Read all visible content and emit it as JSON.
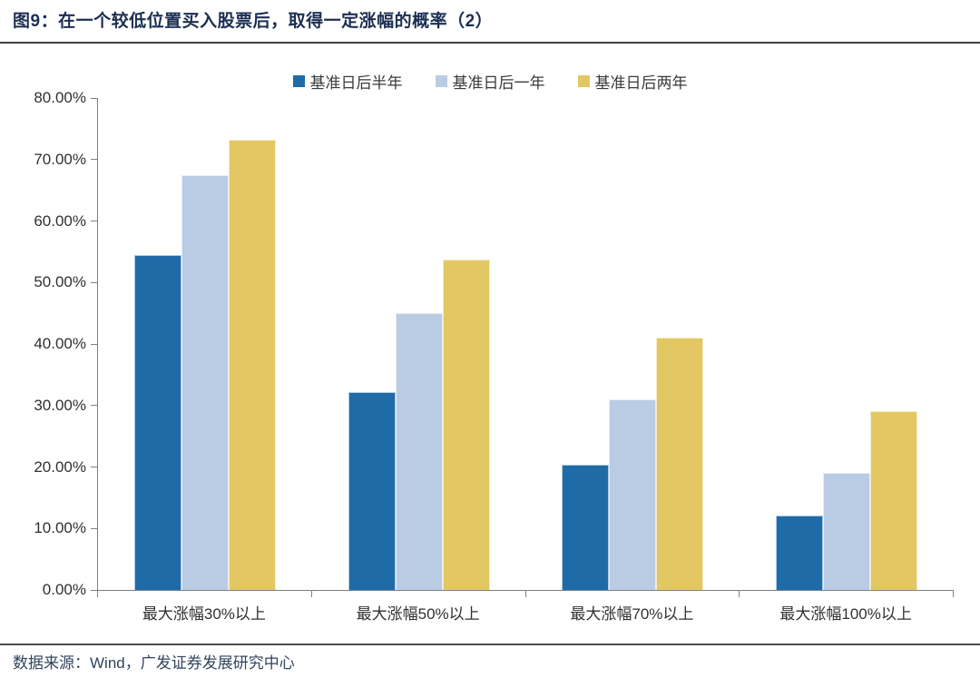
{
  "title": "图9：在一个较低位置买入股票后，取得一定涨幅的概率（2）",
  "footer": {
    "source_text": "数据来源：Wind，广发证券发展研究中心"
  },
  "colors": {
    "title_text": "#1c2f52",
    "footer_text": "#31455e",
    "axis": "#808080",
    "tick_label": "#303030",
    "series_half_year": "#1f6ba8",
    "series_one_year": "#b9cce4",
    "series_two_year": "#e2c763"
  },
  "chart_data": {
    "type": "bar",
    "title": "图9：在一个较低位置买入股票后，取得一定涨幅的概率（2）",
    "categories": [
      "最大涨幅30%以上",
      "最大涨幅50%以上",
      "最大涨幅70%以上",
      "最大涨幅100%以上"
    ],
    "series": [
      {
        "name": "基准日后半年",
        "color": "#1f6ba8",
        "values": [
          54.5,
          32.2,
          20.4,
          12.1
        ]
      },
      {
        "name": "基准日后一年",
        "color": "#b9cce4",
        "values": [
          67.4,
          45.0,
          31.0,
          19.0
        ]
      },
      {
        "name": "基准日后两年",
        "color": "#e2c763",
        "values": [
          73.2,
          53.7,
          41.1,
          29.1
        ]
      }
    ],
    "xlabel": "",
    "ylabel": "",
    "ylim": [
      0,
      80
    ],
    "ytick_step": 10,
    "ytick_format": "0.00%",
    "grid": false,
    "legend_position": "top-center",
    "source_note": "数据来源：Wind，广发证券发展研究中心"
  }
}
